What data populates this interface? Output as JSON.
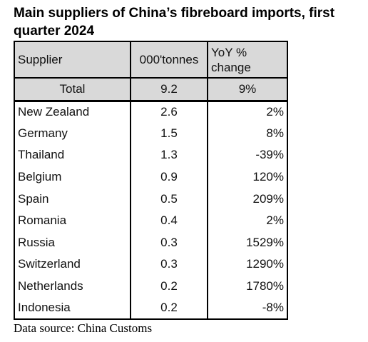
{
  "title": "Main suppliers of China’s fibreboard imports, first quarter 2024",
  "table": {
    "header": [
      "Supplier",
      "000'tonnes",
      "YoY % change"
    ],
    "total": [
      "Total",
      "9.2",
      "9%"
    ],
    "rows": [
      [
        "New Zealand",
        "2.6",
        "2%"
      ],
      [
        "Germany",
        "1.5",
        "8%"
      ],
      [
        "Thailand",
        "1.3",
        "-39%"
      ],
      [
        "Belgium",
        "0.9",
        "120%"
      ],
      [
        "Spain",
        "0.5",
        "209%"
      ],
      [
        "Romania",
        "0.4",
        "2%"
      ],
      [
        "Russia",
        "0.3",
        "1529%"
      ],
      [
        "Switzerland",
        "0.3",
        "1290%"
      ],
      [
        "Netherlands",
        "0.2",
        "1780%"
      ],
      [
        "Indonesia",
        "0.2",
        "-8%"
      ]
    ]
  },
  "source": "Data source: China Customs"
}
